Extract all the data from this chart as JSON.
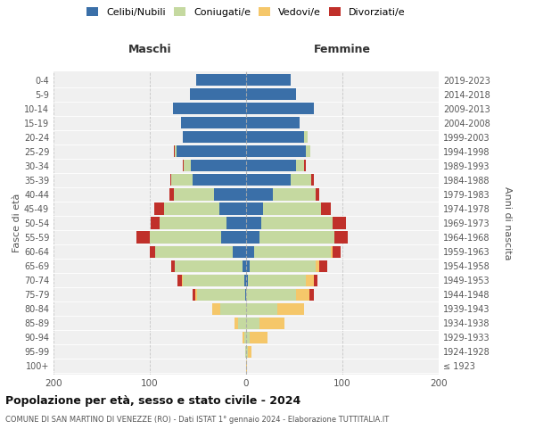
{
  "age_groups": [
    "100+",
    "95-99",
    "90-94",
    "85-89",
    "80-84",
    "75-79",
    "70-74",
    "65-69",
    "60-64",
    "55-59",
    "50-54",
    "45-49",
    "40-44",
    "35-39",
    "30-34",
    "25-29",
    "20-24",
    "15-19",
    "10-14",
    "5-9",
    "0-4"
  ],
  "birth_years": [
    "≤ 1923",
    "1924-1928",
    "1929-1933",
    "1934-1938",
    "1939-1943",
    "1944-1948",
    "1949-1953",
    "1954-1958",
    "1959-1963",
    "1964-1968",
    "1969-1973",
    "1974-1978",
    "1979-1983",
    "1984-1988",
    "1989-1993",
    "1994-1998",
    "1999-2003",
    "2004-2008",
    "2009-2013",
    "2014-2018",
    "2019-2023"
  ],
  "males": {
    "celibi": [
      0,
      0,
      0,
      0,
      0,
      1,
      2,
      4,
      14,
      26,
      20,
      28,
      33,
      56,
      57,
      72,
      66,
      68,
      76,
      58,
      52
    ],
    "coniugati": [
      0,
      1,
      2,
      8,
      27,
      50,
      64,
      70,
      80,
      74,
      70,
      57,
      42,
      22,
      8,
      2,
      0,
      0,
      0,
      0,
      0
    ],
    "vedovi": [
      0,
      0,
      2,
      4,
      8,
      2,
      1,
      0,
      0,
      0,
      0,
      0,
      0,
      0,
      0,
      0,
      0,
      0,
      0,
      0,
      0
    ],
    "divorziati": [
      0,
      0,
      0,
      0,
      0,
      3,
      4,
      4,
      6,
      14,
      9,
      10,
      5,
      1,
      1,
      1,
      0,
      0,
      0,
      0,
      0
    ]
  },
  "females": {
    "nubili": [
      0,
      0,
      0,
      0,
      0,
      0,
      2,
      4,
      8,
      14,
      16,
      18,
      28,
      46,
      52,
      62,
      60,
      56,
      70,
      52,
      46
    ],
    "coniugate": [
      0,
      2,
      4,
      14,
      32,
      52,
      60,
      68,
      80,
      78,
      74,
      60,
      44,
      22,
      8,
      5,
      4,
      0,
      0,
      0,
      0
    ],
    "vedove": [
      1,
      4,
      18,
      26,
      28,
      14,
      8,
      4,
      2,
      0,
      0,
      0,
      0,
      0,
      0,
      0,
      0,
      0,
      0,
      0,
      0
    ],
    "divorziate": [
      0,
      0,
      0,
      0,
      0,
      4,
      4,
      8,
      8,
      14,
      14,
      10,
      4,
      2,
      2,
      0,
      0,
      0,
      0,
      0,
      0
    ]
  },
  "colors": {
    "celibi": "#3a6fa8",
    "coniugati": "#c5d9a0",
    "vedovi": "#f5c76a",
    "divorziati": "#c0302a"
  },
  "xlim": 200,
  "title": "Popolazione per età, sesso e stato civile - 2024",
  "subtitle": "COMUNE DI SAN MARTINO DI VENEZZE (RO) - Dati ISTAT 1° gennaio 2024 - Elaborazione TUTTITALIA.IT",
  "ylabel_left": "Fasce di età",
  "ylabel_right": "Anni di nascita",
  "xlabel_left": "Maschi",
  "xlabel_right": "Femmine",
  "bg_color": "#f0f0f0",
  "grid_color": "#bbbbbb"
}
